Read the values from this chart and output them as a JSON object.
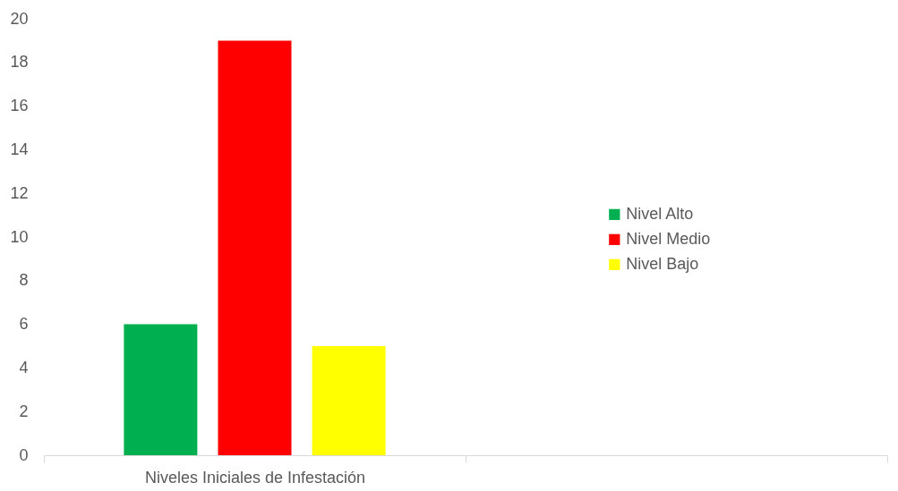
{
  "chart_data": {
    "type": "bar",
    "categories": [
      "Niveles Iniciales de Infestación",
      null
    ],
    "series": [
      {
        "name": "Nivel Alto",
        "color": "#00b050",
        "values": [
          6,
          null
        ]
      },
      {
        "name": "Nivel Medio",
        "color": "#ff0000",
        "values": [
          19,
          null
        ]
      },
      {
        "name": "Nivel Bajo",
        "color": "#ffff00",
        "values": [
          5,
          null
        ]
      }
    ],
    "ylim": [
      0,
      20
    ],
    "yticks": [
      0,
      2,
      4,
      6,
      8,
      10,
      12,
      14,
      16,
      18,
      20
    ],
    "grid": false,
    "legend": "right"
  }
}
